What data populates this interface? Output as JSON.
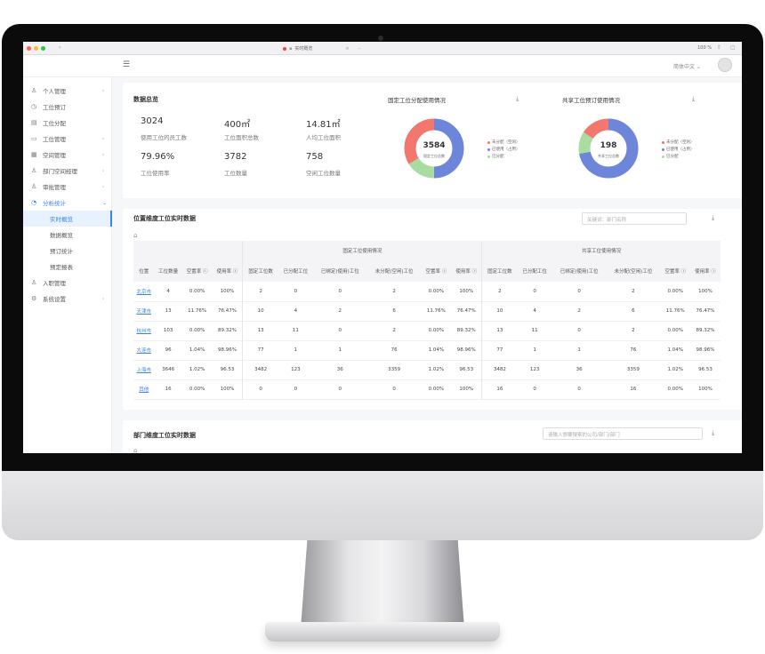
{
  "browser": {
    "tab_title": "实时概览",
    "zoom": "100 %"
  },
  "topbar": {
    "language": "简体中文"
  },
  "sidebar": {
    "items": [
      {
        "label": "个人管理",
        "icon": "user-icon",
        "arrow": "›"
      },
      {
        "label": "工位预订",
        "icon": "clock-icon",
        "arrow": ""
      },
      {
        "label": "工位分配",
        "icon": "doc-icon",
        "arrow": ""
      },
      {
        "label": "工位管理",
        "icon": "monitor-icon",
        "arrow": "›"
      },
      {
        "label": "空间管理",
        "icon": "building-icon",
        "arrow": "›"
      },
      {
        "label": "部门空间经理",
        "icon": "person-icon",
        "arrow": "›"
      },
      {
        "label": "审批管理",
        "icon": "approval-icon",
        "arrow": "›"
      },
      {
        "label": "分析统计",
        "icon": "chart-icon",
        "arrow": "⌄"
      }
    ],
    "subitems": [
      {
        "label": "实时概览",
        "selected": true
      },
      {
        "label": "数据概览",
        "selected": false
      },
      {
        "label": "预订统计",
        "selected": false
      },
      {
        "label": "预定报表",
        "selected": false
      }
    ],
    "bottom_items": [
      {
        "label": "入职管理",
        "icon": "person-icon",
        "arrow": ""
      },
      {
        "label": "系统设置",
        "icon": "gear-icon",
        "arrow": "›"
      }
    ]
  },
  "overview": {
    "title": "数据总览",
    "stats": [
      {
        "value": "3024",
        "label": "使用工位的员工数"
      },
      {
        "value": "400㎡",
        "label": "工位面积总数"
      },
      {
        "value": "14.81㎡",
        "label": "人均工位面积"
      },
      {
        "value": "79.96%",
        "label": "工位使用率"
      },
      {
        "value": "3782",
        "label": "工位数量"
      },
      {
        "value": "758",
        "label": "空闲工位数量"
      }
    ]
  },
  "fixed_chart": {
    "title": "固定工位分配使用情况",
    "center_value": "3584",
    "center_label": "固定工位总数",
    "legend": [
      "未分配（空闲）",
      "已使用（占用）",
      "已分配"
    ],
    "segments": [
      {
        "color": "#6e86d9",
        "fraction": 0.5
      },
      {
        "color": "#a8dca0",
        "fraction": 0.16
      },
      {
        "color": "#f2776f",
        "fraction": 0.34
      }
    ]
  },
  "shared_chart": {
    "title": "共享工位预订使用情况",
    "center_value": "198",
    "center_label": "共享工位总数",
    "legend": [
      "未分配（空闲）",
      "已使用（占用）",
      "已分配"
    ],
    "segments": [
      {
        "color": "#6e86d9",
        "fraction": 0.72
      },
      {
        "color": "#a8dca0",
        "fraction": 0.12
      },
      {
        "color": "#f2776f",
        "fraction": 0.16
      }
    ]
  },
  "location_table": {
    "title": "位置维度工位实时数据",
    "search_placeholder": "关键词：部门名称",
    "group_fixed": "固定工位使用情况",
    "group_shared": "共享工位使用情况",
    "columns": [
      "位置",
      "工位数量",
      "空置率 ⓘ",
      "使用率 ⓘ",
      "固定工位数",
      "已分配工位",
      "已绑定(使用)工位",
      "未分配(空闲)工位",
      "空置率 ⓘ",
      "使用率 ⓘ",
      "固定工位数",
      "已分配工位",
      "已绑定(使用)工位",
      "未分配(空闲)工位",
      "空置率 ⓘ",
      "使用率 ⓘ"
    ],
    "rows": [
      [
        "北京市",
        "4",
        "0.00%",
        "100%",
        "2",
        "0",
        "0",
        "2",
        "0.00%",
        "100%",
        "2",
        "0",
        "0",
        "2",
        "0.00%",
        "100%"
      ],
      [
        "天津市",
        "13",
        "11.76%",
        "76.47%",
        "10",
        "4",
        "2",
        "6",
        "11.76%",
        "76.47%",
        "10",
        "4",
        "2",
        "6",
        "11.76%",
        "76.47%"
      ],
      [
        "杭州市",
        "103",
        "0.00%",
        "89.32%",
        "13",
        "11",
        "0",
        "2",
        "0.00%",
        "89.32%",
        "13",
        "11",
        "0",
        "2",
        "0.00%",
        "89.32%"
      ],
      [
        "大连市",
        "96",
        "1.04%",
        "98.96%",
        "77",
        "1",
        "1",
        "76",
        "1.04%",
        "98.96%",
        "77",
        "1",
        "1",
        "76",
        "1.04%",
        "98.96%"
      ],
      [
        "上海市",
        "3646",
        "1.02%",
        "96.53",
        "3482",
        "123",
        "36",
        "3359",
        "1.02%",
        "96.53",
        "3482",
        "123",
        "36",
        "3359",
        "1.02%",
        "96.53"
      ],
      [
        "其他",
        "16",
        "0.00%",
        "100%",
        "0",
        "0",
        "0",
        "0",
        "0.00%",
        "100%",
        "16",
        "0",
        "0",
        "16",
        "0.00%",
        "100%"
      ]
    ]
  },
  "dept_table": {
    "title": "部门维度工位实时数据",
    "search_placeholder": "请输入想要搜索的公司/部门/部门"
  }
}
